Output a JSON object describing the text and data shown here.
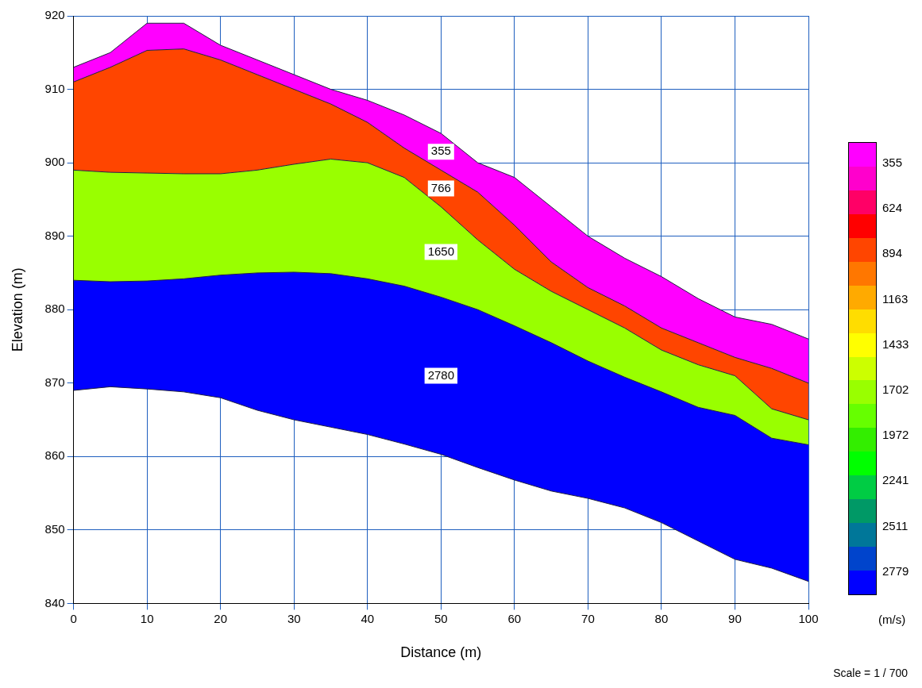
{
  "chart_data": {
    "type": "area",
    "xlabel": "Distance (m)",
    "ylabel": "Elevation (m)",
    "clabel": "(m/s)",
    "x": [
      0,
      5,
      10,
      15,
      20,
      25,
      30,
      35,
      40,
      45,
      50,
      55,
      60,
      65,
      70,
      75,
      80,
      85,
      90,
      95,
      100
    ],
    "series": [
      {
        "name": "355",
        "color": "#ff00ff",
        "values": [
          913,
          915,
          919,
          919,
          916,
          914,
          912,
          910,
          908.5,
          906.5,
          904,
          900,
          898,
          894,
          890,
          887,
          884.5,
          881.5,
          879,
          878,
          876
        ]
      },
      {
        "name": "766",
        "color": "#ff4500",
        "values": [
          911,
          913,
          915.3,
          915.5,
          914,
          912,
          910,
          908,
          905.5,
          902,
          899,
          896,
          891.5,
          886.5,
          883,
          880.5,
          877.5,
          875.5,
          873.5,
          872,
          870
        ]
      },
      {
        "name": "1650",
        "color": "#99ff00",
        "values": [
          899,
          898.7,
          898.6,
          898.5,
          898.5,
          899,
          899.8,
          900.5,
          900,
          898,
          894,
          889.5,
          885.5,
          882.5,
          880,
          877.5,
          874.5,
          872.5,
          871,
          866.5,
          865
        ]
      },
      {
        "name": "2780",
        "color": "#0000ff",
        "values": [
          884,
          883.8,
          883.9,
          884.2,
          884.7,
          885,
          885.1,
          884.9,
          884.2,
          883.2,
          881.7,
          880,
          877.8,
          875.5,
          873,
          870.8,
          868.8,
          866.7,
          865.6,
          862.5,
          861.6
        ]
      },
      {
        "type": "line",
        "color": "#202040",
        "values": [
          869,
          869.5,
          869.2,
          868.8,
          868,
          866.3,
          865,
          864,
          863,
          861.7,
          860.3,
          858.5,
          856.8,
          855.3,
          854.3,
          853,
          851,
          848.5,
          846,
          844.8,
          843
        ]
      }
    ],
    "xlim": [
      0,
      100
    ],
    "xticks": [
      0,
      10,
      20,
      30,
      40,
      50,
      60,
      70,
      80,
      90,
      100
    ],
    "ylim": [
      840,
      920
    ],
    "yticks": [
      840,
      850,
      860,
      870,
      880,
      890,
      900,
      910,
      920
    ],
    "grid": true,
    "legend": false,
    "clim": [
      233,
      2912
    ],
    "cticks": [
      355,
      624,
      894,
      1163,
      1433,
      1702,
      1972,
      2241,
      2511,
      2779
    ],
    "annotations": [
      "Scale = 1 / 700"
    ]
  }
}
